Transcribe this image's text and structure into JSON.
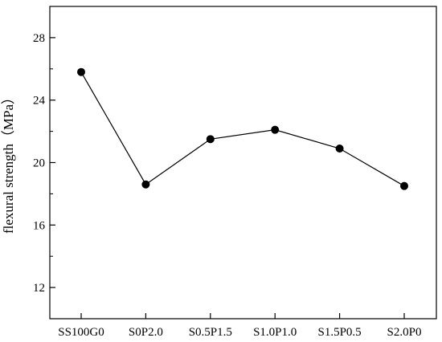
{
  "chart_data": {
    "type": "line",
    "categories": [
      "SS100G0",
      "S0P2.0",
      "S0.5P1.5",
      "S1.0P1.0",
      "S1.5P0.5",
      "S2.0P0"
    ],
    "series": [
      {
        "values": [
          25.8,
          18.6,
          21.5,
          22.1,
          20.9,
          18.5
        ]
      }
    ],
    "xlabel": "",
    "ylabel": "flexural strength（MPa）",
    "ylim": [
      10,
      30
    ],
    "yticks": [
      "12",
      "16",
      "20",
      "24",
      "28"
    ],
    "grid": false,
    "line_color": "#000000",
    "marker_color": "#000000"
  }
}
